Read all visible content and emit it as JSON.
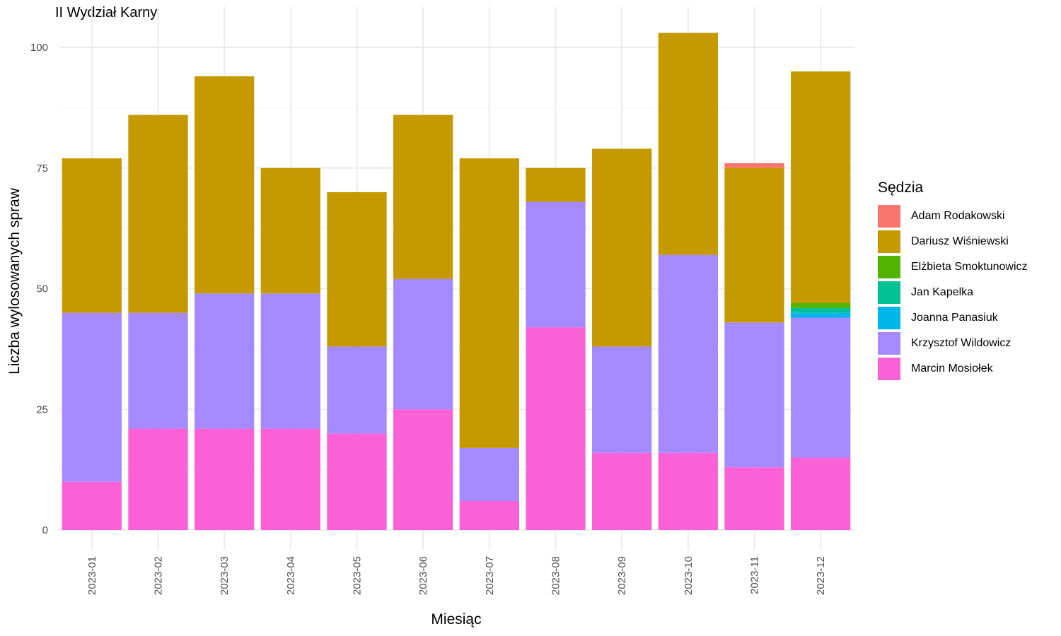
{
  "chart_data": {
    "type": "bar",
    "stacked": true,
    "title": "II Wydział Karny",
    "xlabel": "Miesiąc",
    "ylabel": "Liczba wylosowanych spraw",
    "legend_title": "Sędzia",
    "legend_position": "right",
    "grid": true,
    "ylim": [
      0,
      105
    ],
    "yticks": [
      0,
      25,
      50,
      75,
      100
    ],
    "categories": [
      "2023-01",
      "2023-02",
      "2023-03",
      "2023-04",
      "2023-05",
      "2023-06",
      "2023-07",
      "2023-08",
      "2023-09",
      "2023-10",
      "2023-11",
      "2023-12"
    ],
    "series": [
      {
        "name": "Adam Rodakowski",
        "color": "#F8766D",
        "values": [
          0,
          0,
          0,
          0,
          0,
          0,
          0,
          0,
          0,
          0,
          1,
          0
        ]
      },
      {
        "name": "Dariusz Wiśniewski",
        "color": "#C49A00",
        "values": [
          32,
          41,
          45,
          26,
          32,
          34,
          60,
          7,
          41,
          46,
          32,
          48
        ]
      },
      {
        "name": "Elżbieta Smoktunowicz",
        "color": "#53B400",
        "values": [
          0,
          0,
          0,
          0,
          0,
          0,
          0,
          0,
          0,
          0,
          0,
          1
        ]
      },
      {
        "name": "Jan Kapelka",
        "color": "#00C094",
        "values": [
          0,
          0,
          0,
          0,
          0,
          0,
          0,
          0,
          0,
          0,
          0,
          1
        ]
      },
      {
        "name": "Joanna Panasiuk",
        "color": "#00B6EB",
        "values": [
          0,
          0,
          0,
          0,
          0,
          0,
          0,
          0,
          0,
          0,
          0,
          1
        ]
      },
      {
        "name": "Krzysztof Wildowicz",
        "color": "#A58AFF",
        "values": [
          35,
          24,
          28,
          28,
          18,
          27,
          11,
          26,
          22,
          41,
          30,
          29
        ]
      },
      {
        "name": "Marcin Mosiołek",
        "color": "#FB61D7",
        "values": [
          10,
          21,
          21,
          21,
          20,
          25,
          6,
          42,
          16,
          16,
          13,
          15
        ]
      }
    ]
  }
}
